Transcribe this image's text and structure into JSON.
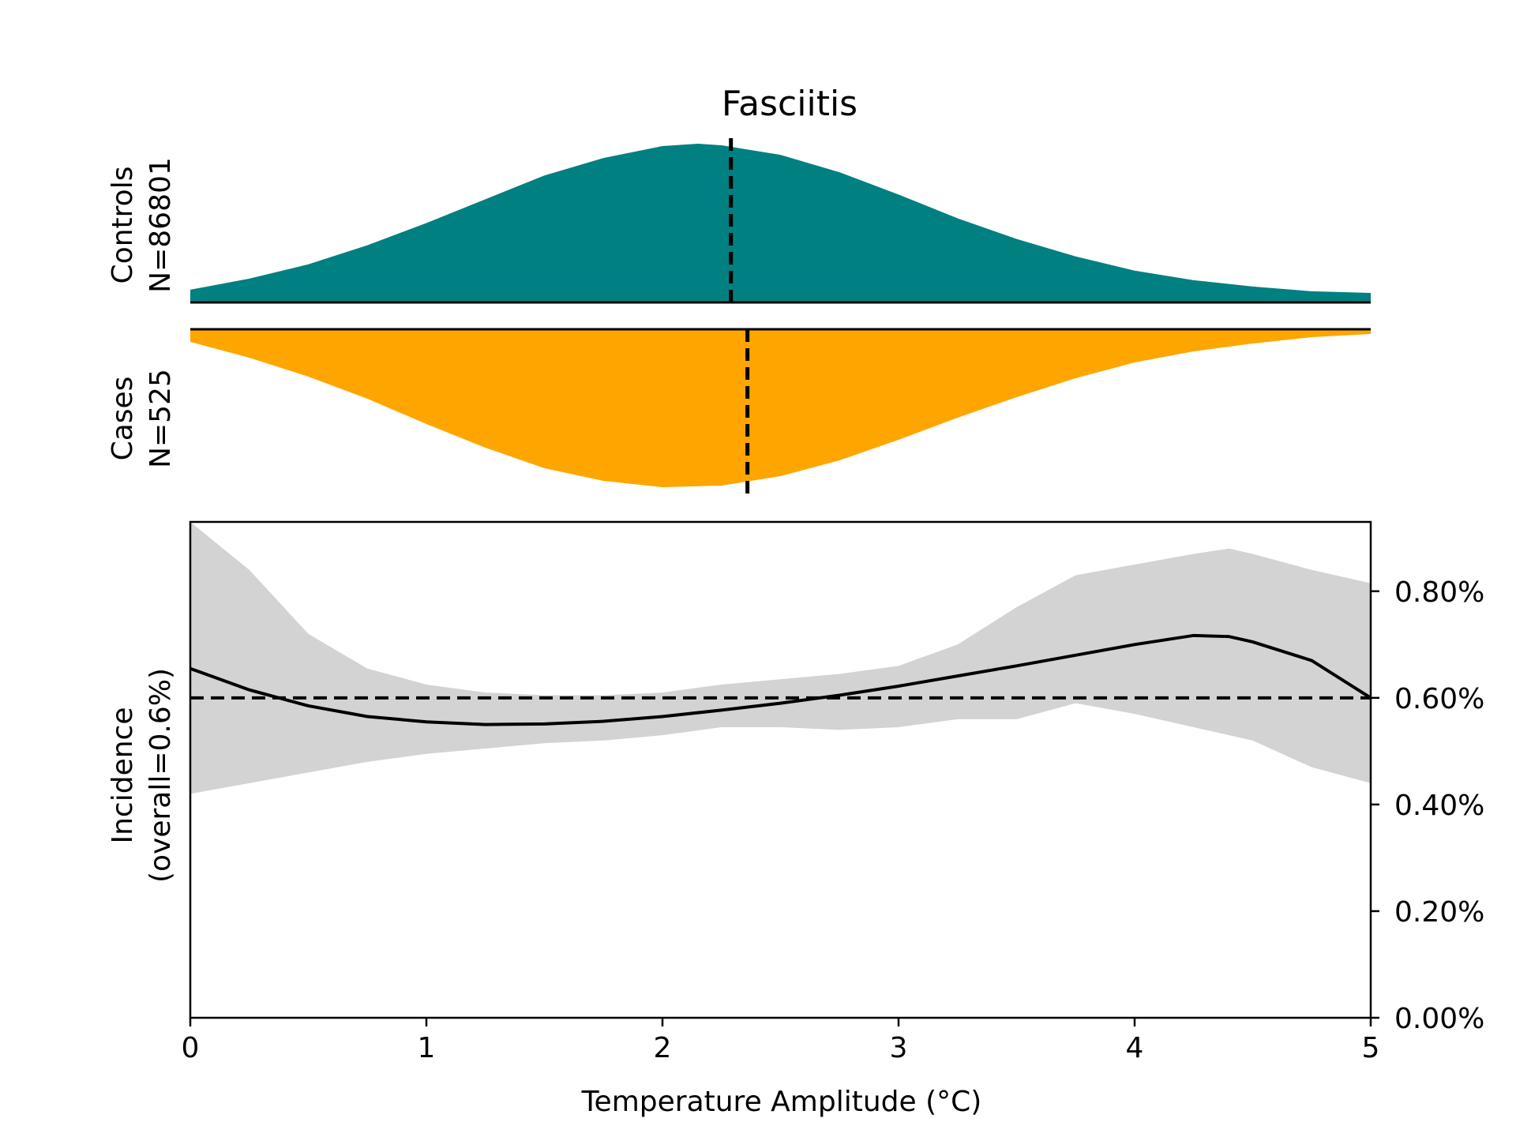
{
  "chart_data": {
    "title": "Fasciitis",
    "colors": {
      "controls": "#008080",
      "cases": "#ffa500",
      "ci_band": "#d3d3d3",
      "line": "#000000"
    },
    "controls": {
      "type": "area",
      "label_line1": "Controls",
      "label_line2": "N=86801",
      "density": {
        "x": [
          0,
          0.25,
          0.5,
          0.75,
          1,
          1.25,
          1.5,
          1.75,
          2,
          2.15,
          2.25,
          2.5,
          2.75,
          3,
          3.25,
          3.5,
          3.75,
          4,
          4.25,
          4.5,
          4.75,
          5
        ],
        "y": [
          0.08,
          0.15,
          0.24,
          0.36,
          0.5,
          0.65,
          0.8,
          0.91,
          0.985,
          1.0,
          0.99,
          0.93,
          0.82,
          0.68,
          0.53,
          0.4,
          0.29,
          0.2,
          0.14,
          0.1,
          0.07,
          0.06
        ]
      },
      "median": 2.29
    },
    "cases": {
      "type": "area",
      "label_line1": "Cases",
      "label_line2": "N=525",
      "density": {
        "x": [
          0,
          0.25,
          0.5,
          0.75,
          1,
          1.25,
          1.5,
          1.75,
          2,
          2.25,
          2.5,
          2.75,
          3,
          3.25,
          3.5,
          3.75,
          4,
          4.25,
          4.5,
          4.75,
          5
        ],
        "y": [
          0.08,
          0.18,
          0.3,
          0.44,
          0.6,
          0.75,
          0.88,
          0.96,
          1.0,
          0.99,
          0.93,
          0.83,
          0.7,
          0.56,
          0.43,
          0.31,
          0.21,
          0.14,
          0.09,
          0.05,
          0.03
        ]
      },
      "median": 2.36
    },
    "incidence": {
      "type": "line",
      "ylabel_line1": "Incidence",
      "ylabel_line2": "(overall=0.6%)",
      "xlabel": "Temperature Amplitude (°C)",
      "xlim": [
        0,
        5
      ],
      "ylim": [
        0,
        0.93
      ],
      "xticks": [
        0,
        1,
        2,
        3,
        4,
        5
      ],
      "xtick_labels": [
        "0",
        "1",
        "2",
        "3",
        "4",
        "5"
      ],
      "yticks": [
        0,
        0.2,
        0.4,
        0.6,
        0.8
      ],
      "ytick_labels": [
        "0.00%",
        "0.20%",
        "0.40%",
        "0.60%",
        "0.80%"
      ],
      "overall": 0.6,
      "x": [
        0,
        0.25,
        0.5,
        0.75,
        1,
        1.25,
        1.5,
        1.75,
        2,
        2.25,
        2.5,
        2.75,
        3,
        3.25,
        3.5,
        3.75,
        4,
        4.25,
        4.4,
        4.5,
        4.75,
        5
      ],
      "y": [
        0.655,
        0.615,
        0.585,
        0.565,
        0.555,
        0.55,
        0.551,
        0.556,
        0.565,
        0.577,
        0.59,
        0.605,
        0.622,
        0.641,
        0.66,
        0.68,
        0.7,
        0.717,
        0.715,
        0.705,
        0.67,
        0.6
      ],
      "ci_lower": [
        0.42,
        0.44,
        0.46,
        0.48,
        0.495,
        0.505,
        0.515,
        0.52,
        0.53,
        0.545,
        0.545,
        0.54,
        0.545,
        0.56,
        0.56,
        0.59,
        0.57,
        0.545,
        0.53,
        0.52,
        0.47,
        0.44
      ],
      "ci_upper": [
        0.93,
        0.84,
        0.72,
        0.655,
        0.625,
        0.61,
        0.605,
        0.605,
        0.61,
        0.625,
        0.635,
        0.645,
        0.66,
        0.7,
        0.77,
        0.83,
        0.85,
        0.87,
        0.88,
        0.87,
        0.84,
        0.815
      ]
    }
  }
}
